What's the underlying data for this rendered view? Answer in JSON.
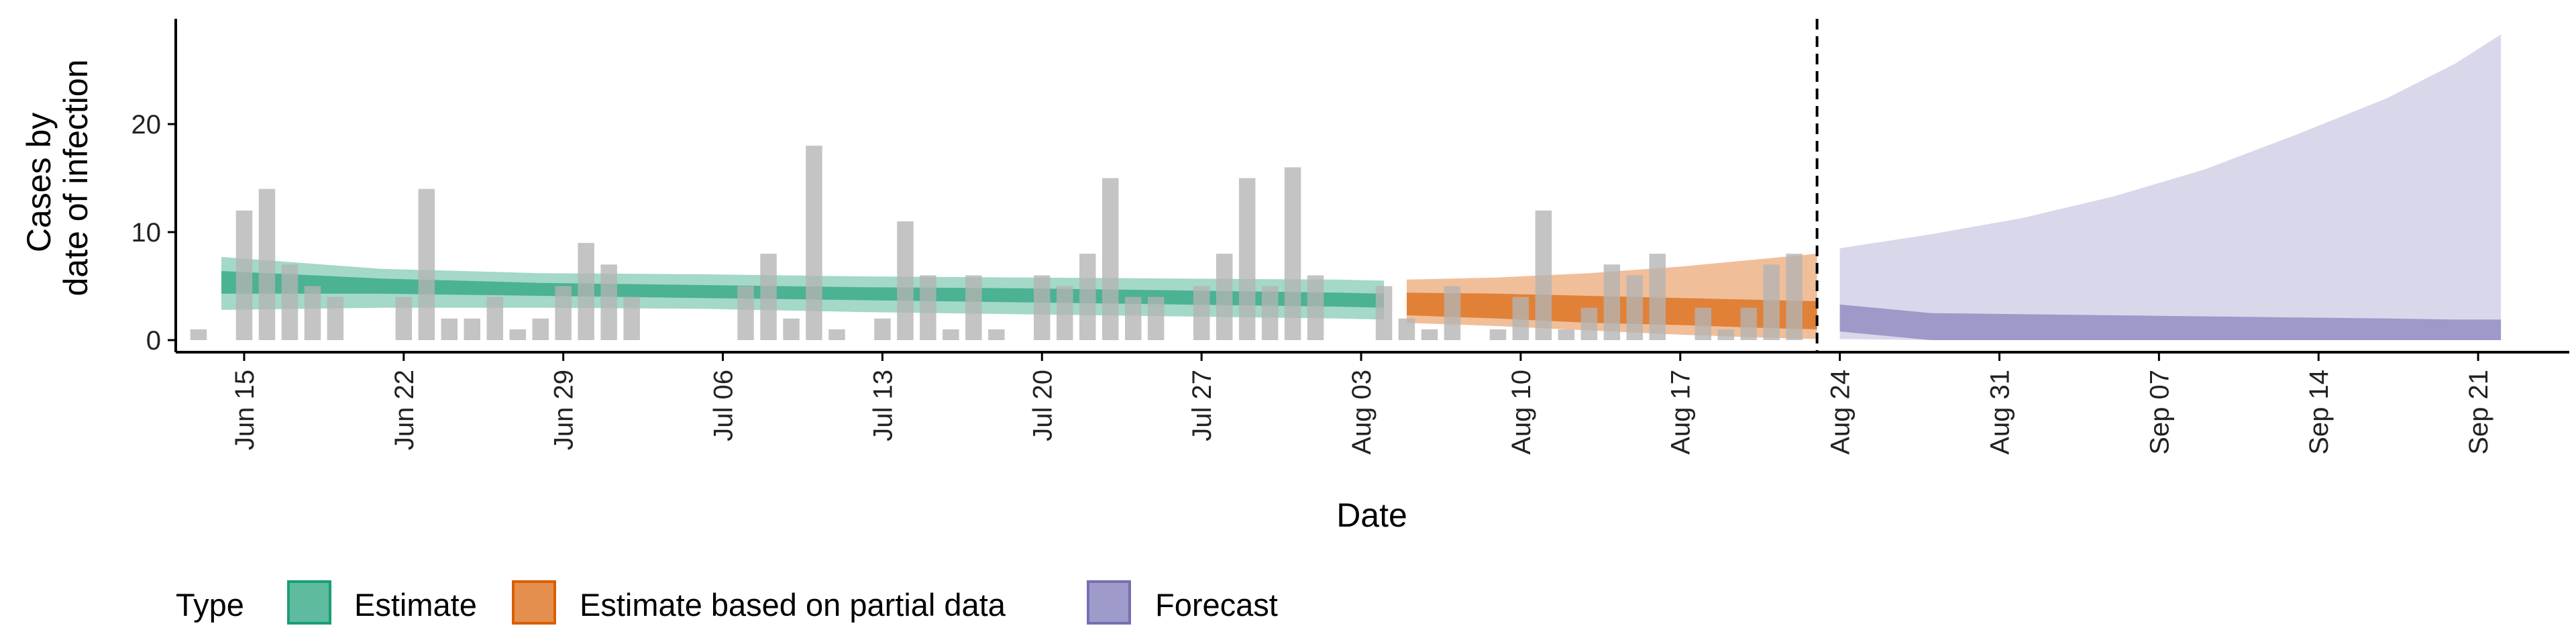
{
  "chart_data": {
    "type": "bar",
    "xlabel": "Date",
    "ylabel_lines": [
      "Cases by",
      "date of infection"
    ],
    "ylim": [
      0,
      30
    ],
    "yticks": [
      0,
      10,
      20
    ],
    "date_axis": {
      "start": "2020-06-12",
      "end": "2020-09-25",
      "tick_labels": [
        "Jun 15",
        "Jun 22",
        "Jun 29",
        "Jul 06",
        "Jul 13",
        "Jul 20",
        "Jul 27",
        "Aug 03",
        "Aug 10",
        "Aug 17",
        "Aug 24",
        "Aug 31",
        "Sep 07",
        "Sep 14",
        "Sep 21"
      ],
      "tick_dates": [
        "2020-06-15",
        "2020-06-22",
        "2020-06-29",
        "2020-07-06",
        "2020-07-13",
        "2020-07-20",
        "2020-07-27",
        "2020-08-03",
        "2020-08-10",
        "2020-08-17",
        "2020-08-24",
        "2020-08-31",
        "2020-09-07",
        "2020-09-14",
        "2020-09-21"
      ]
    },
    "forecast_date": "2020-08-23",
    "observed_cases": {
      "first_date": "2020-06-13",
      "values": [
        1,
        0,
        12,
        14,
        7,
        5,
        4,
        0,
        0,
        4,
        14,
        2,
        2,
        4,
        1,
        2,
        5,
        9,
        7,
        4,
        0,
        0,
        0,
        0,
        5,
        8,
        2,
        18,
        1,
        0,
        2,
        11,
        6,
        1,
        6,
        1,
        0,
        6,
        5,
        8,
        15,
        4,
        4,
        0,
        5,
        8,
        15,
        5,
        16,
        6,
        0,
        0,
        5,
        2,
        1,
        5,
        0,
        1,
        4,
        12,
        1,
        3,
        7,
        6,
        8,
        0,
        3,
        1,
        3,
        7,
        8
      ]
    },
    "legend": {
      "title": "Type",
      "items": [
        "Estimate",
        "Estimate based on partial data",
        "Forecast"
      ]
    },
    "colors": {
      "bars": "#b3b3b3",
      "estimate": "#1b9e77",
      "partial": "#d95f02",
      "forecast": "#7570b3",
      "axis": "#000000"
    },
    "series": [
      {
        "key": "estimate",
        "x": [
          "2020-06-14",
          "2020-06-21",
          "2020-06-28",
          "2020-07-05",
          "2020-07-12",
          "2020-07-19",
          "2020-07-26",
          "2020-08-02",
          "2020-08-04"
        ],
        "outer_lower": [
          2.8,
          3.0,
          3.0,
          2.9,
          2.6,
          2.4,
          2.2,
          2.0,
          1.9
        ],
        "outer_upper": [
          7.7,
          6.6,
          6.2,
          6.1,
          5.9,
          5.8,
          5.7,
          5.6,
          5.5
        ],
        "inner_lower": [
          4.3,
          4.3,
          4.1,
          3.9,
          3.7,
          3.5,
          3.3,
          3.1,
          3.0
        ],
        "inner_upper": [
          6.4,
          5.7,
          5.3,
          5.1,
          4.9,
          4.8,
          4.6,
          4.4,
          4.3
        ]
      },
      {
        "key": "partial",
        "x": [
          "2020-08-05",
          "2020-08-09",
          "2020-08-13",
          "2020-08-17",
          "2020-08-21",
          "2020-08-23"
        ],
        "outer_lower": [
          1.6,
          1.3,
          0.9,
          0.5,
          0.2,
          0.1
        ],
        "outer_upper": [
          5.6,
          5.8,
          6.2,
          6.8,
          7.6,
          8.0
        ],
        "inner_lower": [
          2.3,
          2.0,
          1.6,
          1.4,
          1.1,
          1.0
        ],
        "inner_upper": [
          4.4,
          4.3,
          4.1,
          3.9,
          3.7,
          3.6
        ]
      },
      {
        "key": "forecast",
        "x": [
          "2020-08-24",
          "2020-08-28",
          "2020-09-01",
          "2020-09-05",
          "2020-09-09",
          "2020-09-13",
          "2020-09-17",
          "2020-09-20",
          "2020-09-22"
        ],
        "outer_lower": [
          0.1,
          0.0,
          0.0,
          0.0,
          0.0,
          0.0,
          0.0,
          0.0,
          0.0
        ],
        "outer_upper": [
          8.5,
          9.8,
          11.3,
          13.3,
          15.8,
          19.0,
          22.4,
          25.6,
          28.3
        ],
        "inner_lower": [
          0.8,
          0.0,
          0.0,
          0.0,
          0.0,
          0.0,
          0.0,
          0.0,
          0.0
        ],
        "inner_upper": [
          3.3,
          2.5,
          2.4,
          2.3,
          2.2,
          2.1,
          2.0,
          1.9,
          1.9
        ]
      }
    ]
  }
}
